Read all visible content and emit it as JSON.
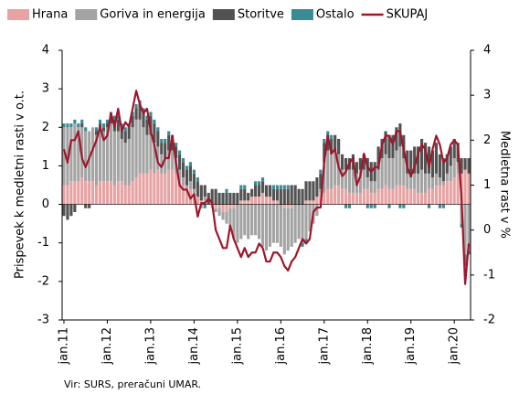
{
  "chart_data": {
    "type": "bar",
    "stacked": true,
    "y_label": "Prispevek k medletni rasti v o.t.",
    "y2_label": "Medletna  rast v %",
    "source": "Vir: SURS, preračuni UMAR.",
    "categories": [
      "jan.11",
      null,
      null,
      null,
      null,
      null,
      null,
      null,
      null,
      null,
      null,
      null,
      "jan.12",
      null,
      null,
      null,
      null,
      null,
      null,
      null,
      null,
      null,
      null,
      null,
      "jan.13",
      null,
      null,
      null,
      null,
      null,
      null,
      null,
      null,
      null,
      null,
      null,
      "jan.14",
      null,
      null,
      null,
      null,
      null,
      null,
      null,
      null,
      null,
      null,
      null,
      "jan.15",
      null,
      null,
      null,
      null,
      null,
      null,
      null,
      null,
      null,
      null,
      null,
      "jan.16",
      null,
      null,
      null,
      null,
      null,
      null,
      null,
      null,
      null,
      null,
      null,
      "jan.17",
      null,
      null,
      null,
      null,
      null,
      null,
      null,
      null,
      null,
      null,
      null,
      "jan.18",
      null,
      null,
      null,
      null,
      null,
      null,
      null,
      null,
      null,
      null,
      null,
      "jan.19",
      null,
      null,
      null,
      null,
      null,
      null,
      null,
      null,
      null,
      null,
      null,
      "jan.20",
      null,
      null,
      null,
      null
    ],
    "ylim": [
      -3,
      4
    ],
    "yticks": [
      -3,
      -2,
      -1,
      0,
      1,
      2,
      3,
      4
    ],
    "y2lim": [
      -2,
      4
    ],
    "y2ticks": [
      -2,
      -1,
      0,
      1,
      2,
      3,
      4
    ],
    "legend": "top",
    "series": [
      {
        "name": "Hrana",
        "color": "#e7a3a3",
        "values": [
          0.5,
          0.5,
          0.6,
          0.6,
          0.6,
          0.7,
          0.6,
          0.6,
          0.6,
          0.5,
          0.6,
          0.6,
          0.6,
          0.6,
          0.5,
          0.6,
          0.6,
          0.5,
          0.5,
          0.6,
          0.7,
          0.8,
          0.8,
          0.8,
          0.9,
          0.8,
          0.9,
          0.8,
          0.8,
          0.9,
          0.9,
          0.8,
          0.6,
          0.5,
          0.4,
          0.4,
          0.3,
          0.2,
          0.1,
          0.1,
          0.0,
          -0.1,
          -0.1,
          -0.1,
          -0.2,
          -0.2,
          -0.1,
          -0.1,
          0.0,
          0.1,
          0.1,
          0.1,
          0.2,
          0.2,
          0.2,
          0.3,
          0.2,
          0.2,
          0.1,
          0.1,
          0.0,
          -0.1,
          -0.1,
          -0.1,
          0.0,
          0.0,
          0.0,
          0.1,
          0.1,
          0.1,
          0.2,
          0.3,
          0.3,
          0.4,
          0.4,
          0.5,
          0.5,
          0.4,
          0.4,
          0.3,
          0.3,
          0.3,
          0.3,
          0.4,
          0.4,
          0.3,
          0.3,
          0.4,
          0.4,
          0.5,
          0.4,
          0.4,
          0.5,
          0.5,
          0.5,
          0.4,
          0.4,
          0.4,
          0.3,
          0.3,
          0.3,
          0.4,
          0.4,
          0.5,
          0.5,
          0.5,
          0.6,
          0.6,
          0.7,
          0.8,
          0.8,
          0.9,
          0.8
        ]
      },
      {
        "name": "Goriva in energija",
        "color": "#a3a3a3",
        "values": [
          1.5,
          1.5,
          1.4,
          1.5,
          1.4,
          1.3,
          1.3,
          1.3,
          1.4,
          1.3,
          1.4,
          1.3,
          1.4,
          1.5,
          1.4,
          1.3,
          1.1,
          1.1,
          1.2,
          1.4,
          1.5,
          1.4,
          1.2,
          1.0,
          0.9,
          0.8,
          0.6,
          0.5,
          0.4,
          0.5,
          0.5,
          0.4,
          0.3,
          0.2,
          0.1,
          0.2,
          0.1,
          0.0,
          -0.1,
          0.1,
          0.0,
          0.0,
          -0.1,
          -0.2,
          -0.2,
          -0.3,
          -0.5,
          -0.8,
          -1.0,
          -0.9,
          -0.8,
          -0.9,
          -0.8,
          -0.8,
          -0.9,
          -1.1,
          -1.2,
          -1.1,
          -1.0,
          -1.0,
          -1.1,
          -1.2,
          -1.1,
          -1.0,
          -1.0,
          -0.9,
          -1.0,
          -0.9,
          -0.7,
          -0.5,
          -0.3,
          0.1,
          0.8,
          1.0,
          0.9,
          0.9,
          0.8,
          0.5,
          0.5,
          0.6,
          0.6,
          0.5,
          0.6,
          0.5,
          0.3,
          0.3,
          0.3,
          0.5,
          0.8,
          0.8,
          0.8,
          0.8,
          0.9,
          1.0,
          0.7,
          0.4,
          0.3,
          0.4,
          0.5,
          0.6,
          0.5,
          0.4,
          0.3,
          0.3,
          0.2,
          0.1,
          0.2,
          0.4,
          0.5,
          0.3,
          -0.5,
          -1.3,
          -1.2
        ]
      },
      {
        "name": "Storitve",
        "color": "#525252",
        "values": [
          -0.3,
          -0.4,
          -0.3,
          -0.2,
          0.0,
          0.1,
          -0.1,
          -0.1,
          0.0,
          0.1,
          0.1,
          0.1,
          0.1,
          0.2,
          0.3,
          0.3,
          0.3,
          0.3,
          0.3,
          0.3,
          0.3,
          0.4,
          0.4,
          0.4,
          0.5,
          0.5,
          0.4,
          0.3,
          0.4,
          0.4,
          0.3,
          0.3,
          0.4,
          0.4,
          0.4,
          0.4,
          0.4,
          0.4,
          0.4,
          0.3,
          0.3,
          0.4,
          0.4,
          0.3,
          0.3,
          0.3,
          0.3,
          0.3,
          0.3,
          0.3,
          0.3,
          0.2,
          0.2,
          0.3,
          0.3,
          0.3,
          0.3,
          0.3,
          0.3,
          0.3,
          0.4,
          0.4,
          0.4,
          0.5,
          0.5,
          0.4,
          0.4,
          0.5,
          0.5,
          0.5,
          0.5,
          0.4,
          0.5,
          0.4,
          0.4,
          0.4,
          0.4,
          0.4,
          0.3,
          0.3,
          0.4,
          0.3,
          0.3,
          0.4,
          0.5,
          0.5,
          0.5,
          0.6,
          0.5,
          0.6,
          0.6,
          0.6,
          0.6,
          0.6,
          0.6,
          0.6,
          0.7,
          0.7,
          0.7,
          0.8,
          0.8,
          0.7,
          0.7,
          0.8,
          0.6,
          0.6,
          0.5,
          0.5,
          0.5,
          0.5,
          0.4,
          0.3,
          0.4
        ]
      },
      {
        "name": "Ostalo",
        "color": "#3a8b94",
        "values": [
          0.1,
          0.1,
          0.1,
          0.1,
          0.1,
          0.1,
          0.1,
          0.0,
          0.0,
          0.1,
          0.1,
          0.1,
          0.1,
          0.1,
          0.1,
          0.1,
          0.1,
          0.1,
          0.1,
          0.1,
          0.1,
          0.1,
          0.1,
          0.1,
          0.1,
          0.1,
          0.1,
          0.1,
          0.1,
          0.1,
          0.1,
          0.1,
          0.1,
          0.1,
          0.1,
          0.1,
          0.1,
          0.1,
          0.0,
          -0.1,
          0.0,
          0.0,
          0.0,
          0.0,
          0.0,
          0.1,
          0.0,
          0.0,
          0.0,
          0.1,
          0.1,
          0.0,
          0.0,
          0.1,
          0.1,
          0.1,
          0.0,
          0.0,
          0.1,
          0.1,
          0.1,
          0.1,
          0.1,
          0.0,
          0.0,
          0.0,
          -0.1,
          -0.1,
          0.0,
          0.0,
          0.0,
          0.1,
          0.1,
          0.1,
          0.1,
          0.0,
          0.0,
          0.0,
          -0.1,
          -0.1,
          0.0,
          0.0,
          0.0,
          0.0,
          -0.1,
          -0.1,
          -0.1,
          0.0,
          0.0,
          0.0,
          -0.1,
          0.0,
          0.0,
          -0.1,
          -0.1,
          0.0,
          0.0,
          0.0,
          0.0,
          0.0,
          0.0,
          -0.1,
          0.0,
          0.0,
          -0.1,
          -0.1,
          0.0,
          0.0,
          0.0,
          0.0,
          -0.1,
          -0.3,
          -0.1
        ]
      },
      {
        "name": "SKUPAJ",
        "color": "#a0162c",
        "type": "line",
        "axis": "y2",
        "values": [
          1.8,
          1.5,
          2.0,
          2.0,
          2.2,
          1.6,
          1.4,
          1.6,
          1.8,
          2.0,
          2.3,
          2.0,
          2.1,
          2.6,
          2.3,
          2.7,
          2.2,
          2.4,
          2.3,
          2.7,
          3.1,
          2.8,
          2.6,
          2.7,
          2.2,
          1.9,
          1.5,
          1.4,
          1.6,
          1.6,
          2.1,
          1.5,
          1.0,
          0.9,
          0.9,
          0.7,
          0.8,
          0.3,
          0.6,
          0.6,
          0.7,
          0.6,
          0.0,
          -0.2,
          -0.4,
          -0.4,
          0.1,
          -0.2,
          -0.4,
          -0.6,
          -0.4,
          -0.6,
          -0.5,
          -0.5,
          -0.3,
          -0.4,
          -0.7,
          -0.7,
          -0.5,
          -0.5,
          -0.6,
          -0.8,
          -0.9,
          -0.7,
          -0.6,
          -0.4,
          -0.2,
          -0.3,
          -0.2,
          0.4,
          0.5,
          0.5,
          1.5,
          2.1,
          1.7,
          1.8,
          1.4,
          1.2,
          1.3,
          1.5,
          1.6,
          1.0,
          1.2,
          1.7,
          1.4,
          1.3,
          1.4,
          1.4,
          1.9,
          2.1,
          2.1,
          1.9,
          2.2,
          2.2,
          1.8,
          1.4,
          1.2,
          1.4,
          1.7,
          1.9,
          1.8,
          1.4,
          1.8,
          2.1,
          1.9,
          1.5,
          1.6,
          1.9,
          2.0,
          1.9,
          0.7,
          -1.2,
          -0.3
        ]
      }
    ]
  }
}
